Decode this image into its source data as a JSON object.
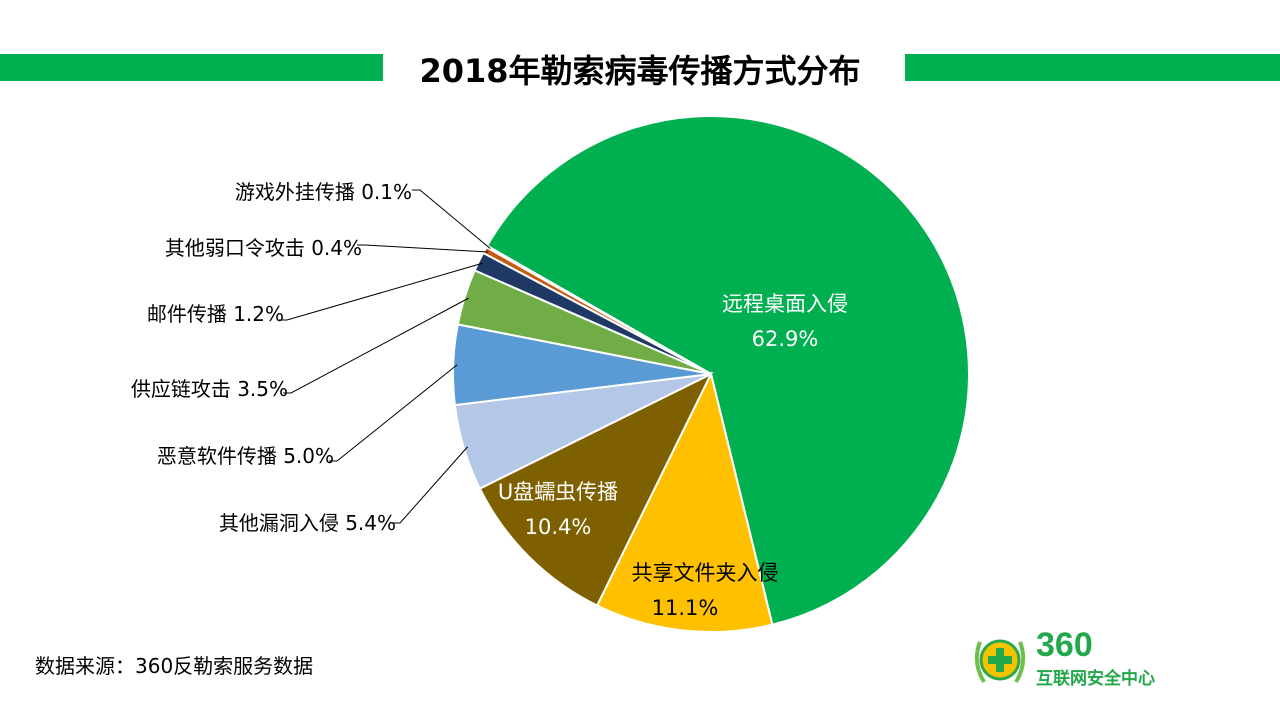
{
  "chart_data": {
    "type": "pie",
    "title": "2018年勒索病毒传播方式分布",
    "slices": [
      {
        "label": "远程桌面入侵",
        "value": 62.9,
        "display": "62.9%",
        "color": "#00b050"
      },
      {
        "label": "共享文件夹入侵",
        "value": 11.1,
        "display": "11.1%",
        "color": "#ffc000"
      },
      {
        "label": "U盘蠕虫传播",
        "value": 10.4,
        "display": "10.4%",
        "color": "#7f6000"
      },
      {
        "label": "其他漏洞入侵",
        "value": 5.4,
        "display": "5.4%",
        "color": "#b4c7e7"
      },
      {
        "label": "恶意软件传播",
        "value": 5.0,
        "display": "5.0%",
        "color": "#5b9bd5"
      },
      {
        "label": "供应链攻击",
        "value": 3.5,
        "display": "3.5%",
        "color": "#70ad47"
      },
      {
        "label": "邮件传播",
        "value": 1.2,
        "display": "1.2%",
        "color": "#203864"
      },
      {
        "label": "其他弱口令攻击",
        "value": 0.4,
        "display": "0.4%",
        "color": "#c55a11"
      },
      {
        "label": "游戏外挂传播",
        "value": 0.1,
        "display": "0.1%",
        "color": "#a5a5a5"
      }
    ]
  },
  "source": "数据来源：360反勒索服务数据",
  "logo": {
    "number": "360",
    "text": "互联网安全中心"
  }
}
